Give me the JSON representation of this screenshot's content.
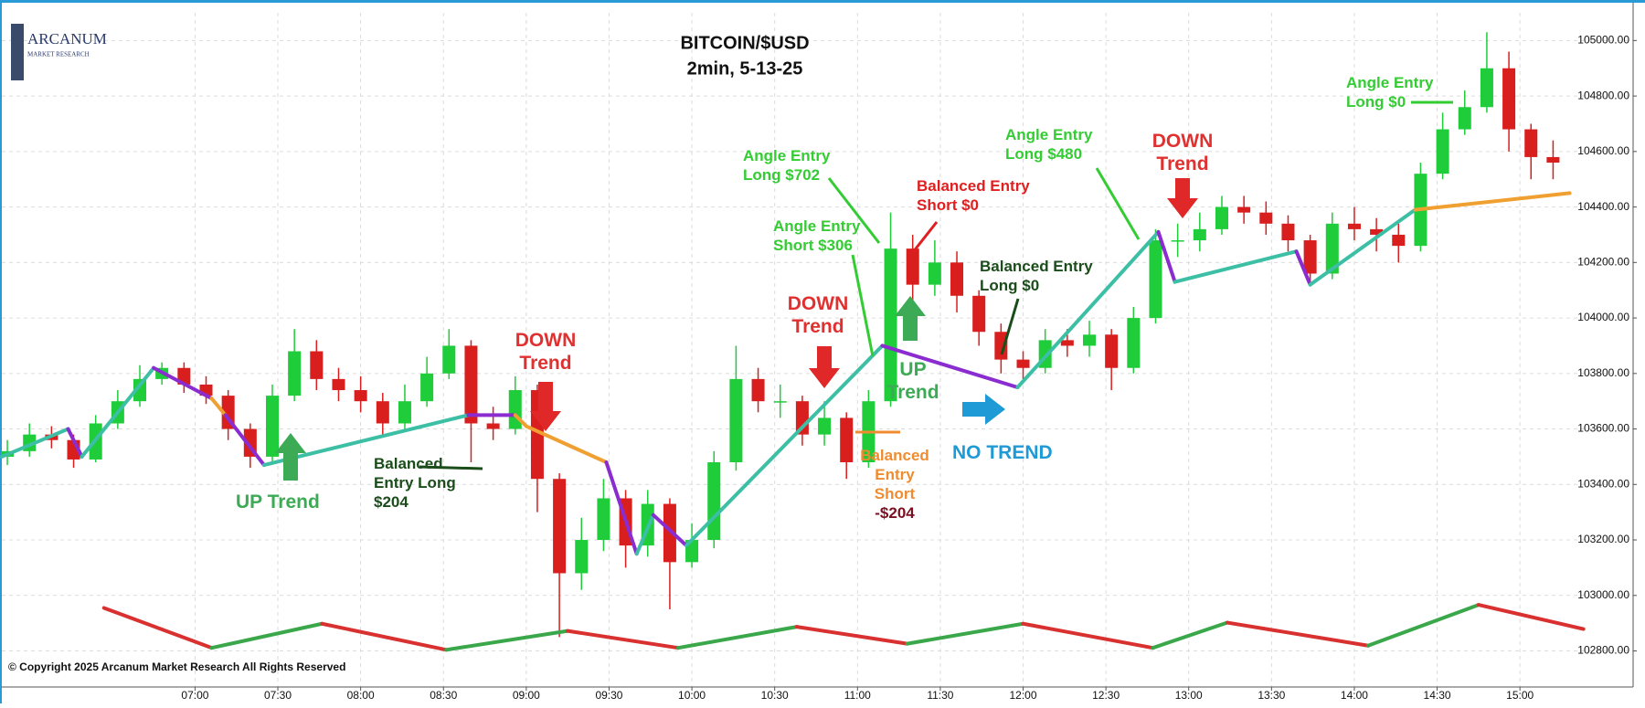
{
  "chart_data": {
    "type": "candlestick",
    "title": "BITCOIN/$USD",
    "subtitle": "2min, 5-13-25",
    "xlim": [
      350,
      941
    ],
    "xticks": [
      {
        "value": 420,
        "label": "07:00"
      },
      {
        "value": 450,
        "label": "07:30"
      },
      {
        "value": 480,
        "label": "08:00"
      },
      {
        "value": 510,
        "label": "08:30"
      },
      {
        "value": 540,
        "label": "09:00"
      },
      {
        "value": 570,
        "label": "09:30"
      },
      {
        "value": 600,
        "label": "10:00"
      },
      {
        "value": 630,
        "label": "10:30"
      },
      {
        "value": 660,
        "label": "11:00"
      },
      {
        "value": 690,
        "label": "11:30"
      },
      {
        "value": 720,
        "label": "12:00"
      },
      {
        "value": 750,
        "label": "12:30"
      },
      {
        "value": 780,
        "label": "13:00"
      },
      {
        "value": 810,
        "label": "13:30"
      },
      {
        "value": 840,
        "label": "14:00"
      },
      {
        "value": 870,
        "label": "14:30"
      },
      {
        "value": 900,
        "label": "15:00"
      }
    ],
    "ylim": [
      102670,
      105100
    ],
    "yticks": [
      {
        "value": 102800,
        "label": "102800.00"
      },
      {
        "value": 103000,
        "label": "103000.00"
      },
      {
        "value": 103200,
        "label": "103200.00"
      },
      {
        "value": 103400,
        "label": "103400.00"
      },
      {
        "value": 103600,
        "label": "103600.00"
      },
      {
        "value": 103800,
        "label": "103800.00"
      },
      {
        "value": 104000,
        "label": "104000.00"
      },
      {
        "value": 104200,
        "label": "104200.00"
      },
      {
        "value": 104400,
        "label": "104400.00"
      },
      {
        "value": 104600,
        "label": "104600.00"
      },
      {
        "value": 104800,
        "label": "104800.00"
      },
      {
        "value": 105000,
        "label": "105000.00"
      }
    ],
    "grid": true,
    "up_color": "#1fcc3a",
    "down_color": "#d91e1e",
    "candles": {
      "x": [
        352,
        360,
        368,
        376,
        384,
        392,
        400,
        408,
        416,
        424,
        432,
        440,
        448,
        456,
        464,
        472,
        480,
        488,
        496,
        504,
        512,
        520,
        528,
        536,
        544,
        552,
        560,
        568,
        576,
        584,
        592,
        600,
        608,
        616,
        624,
        632,
        640,
        648,
        656,
        664,
        672,
        680,
        688,
        696,
        704,
        712,
        720,
        728,
        736,
        744,
        752,
        760,
        768,
        776,
        784,
        792,
        800,
        808,
        816,
        824,
        832,
        840,
        848,
        856,
        864,
        872,
        880,
        888,
        896,
        904,
        912
      ],
      "open": [
        103500,
        103520,
        103580,
        103560,
        103490,
        103620,
        103700,
        103780,
        103820,
        103760,
        103720,
        103600,
        103500,
        103720,
        103880,
        103780,
        103740,
        103700,
        103620,
        103700,
        103800,
        103900,
        103620,
        103600,
        103740,
        103420,
        103080,
        103200,
        103350,
        103180,
        103330,
        103120,
        103200,
        103480,
        103780,
        103700,
        103700,
        103580,
        103640,
        103480,
        103700,
        104250,
        104120,
        104200,
        104080,
        103950,
        103850,
        103820,
        103920,
        103900,
        103940,
        103820,
        104000,
        104280,
        104280,
        104320,
        104400,
        104380,
        104340,
        104280,
        104160,
        104340,
        104320,
        104300,
        104260,
        104520,
        104680,
        104760,
        104900,
        104680,
        104580
      ],
      "high": [
        103560,
        103620,
        103610,
        103580,
        103650,
        103740,
        103830,
        103840,
        103840,
        103790,
        103740,
        103620,
        103760,
        103960,
        103920,
        103820,
        103790,
        103730,
        103760,
        103860,
        103960,
        103920,
        103680,
        103790,
        103760,
        103440,
        103280,
        103420,
        103380,
        103380,
        103350,
        103260,
        103520,
        103900,
        103820,
        103760,
        103720,
        103700,
        103660,
        103740,
        104380,
        104300,
        104280,
        104240,
        104100,
        103980,
        103880,
        103960,
        103960,
        103990,
        103960,
        104040,
        104320,
        104340,
        104380,
        104440,
        104440,
        104420,
        104370,
        104300,
        104380,
        104400,
        104360,
        104340,
        104560,
        104740,
        104820,
        105030,
        104960,
        104700,
        104640
      ],
      "low": [
        103470,
        103500,
        103530,
        103460,
        103480,
        103600,
        103680,
        103760,
        103730,
        103690,
        103560,
        103460,
        103480,
        103700,
        103740,
        103700,
        103660,
        103580,
        103600,
        103680,
        103780,
        103480,
        103560,
        103580,
        103300,
        102850,
        103020,
        103160,
        103100,
        103140,
        102950,
        103100,
        103170,
        103450,
        103660,
        103640,
        103540,
        103540,
        103420,
        103460,
        103680,
        104060,
        104080,
        104020,
        103900,
        103800,
        103780,
        103800,
        103860,
        103860,
        103740,
        103800,
        103980,
        104220,
        104240,
        104300,
        104340,
        104300,
        104240,
        104120,
        104140,
        104280,
        104240,
        104200,
        104240,
        104500,
        104660,
        104740,
        104600,
        104500,
        104500
      ],
      "close": [
        103520,
        103580,
        103560,
        103490,
        103620,
        103700,
        103780,
        103820,
        103760,
        103720,
        103600,
        103500,
        103720,
        103880,
        103780,
        103740,
        103700,
        103620,
        103700,
        103800,
        103900,
        103620,
        103600,
        103740,
        103420,
        103080,
        103200,
        103350,
        103180,
        103330,
        103120,
        103200,
        103480,
        103780,
        103700,
        103700,
        103580,
        103640,
        103480,
        103700,
        104250,
        104120,
        104200,
        104080,
        103950,
        103850,
        103820,
        103920,
        103900,
        103940,
        103820,
        104000,
        104280,
        104280,
        104320,
        104400,
        104380,
        104340,
        104280,
        104160,
        104340,
        104320,
        104300,
        104260,
        104520,
        104680,
        104760,
        104900,
        104680,
        104580,
        104560
      ]
    },
    "trend_line": {
      "x": [
        350,
        374,
        379,
        405,
        426,
        431,
        445,
        519,
        536,
        540,
        569,
        580,
        586,
        598,
        669,
        718,
        769,
        775,
        819,
        824,
        862,
        918
      ],
      "y": [
        103500,
        103600,
        103500,
        103820,
        103710,
        103650,
        103470,
        103650,
        103650,
        103610,
        103480,
        103150,
        103290,
        103180,
        103900,
        103750,
        104310,
        104130,
        104240,
        104120,
        104390,
        104450
      ],
      "segment_colors": [
        "#3cbfa4",
        "#8a2ccf",
        "#3cbfa4",
        "#8a2ccf",
        "#f0a030",
        "#8a2ccf",
        "#3cbfa4",
        "#8a2ccf",
        "#f0a030",
        "#f0a030",
        "#8a2ccf",
        "#3cbfa4",
        "#8a2ccf",
        "#3cbfa4",
        "#8a2ccf",
        "#3cbfa4",
        "#8a2ccf",
        "#3cbfa4",
        "#8a2ccf",
        "#3cbfa4",
        "#f0a030"
      ]
    },
    "indicator_line": {
      "x": [
        387,
        426,
        466,
        511,
        555,
        595,
        638,
        678,
        720,
        767,
        794,
        845,
        885,
        923
      ],
      "y": [
        102955,
        102811,
        102898,
        102804,
        102872,
        102811,
        102887,
        102826,
        102898,
        102811,
        102902,
        102819,
        102966,
        102879
      ],
      "segment_colors": [
        "#d93030",
        "#3aa84a",
        "#d93030",
        "#3aa84a",
        "#d93030",
        "#3aa84a",
        "#d93030",
        "#3aa84a",
        "#d93030",
        "#3aa84a",
        "#d93030",
        "#3aa84a",
        "#d93030"
      ]
    },
    "annotations": [
      {
        "lines": [
          "Angle Entry",
          "Long $0"
        ]
      },
      {
        "lines": [
          "Angle Entry",
          "Long $702"
        ]
      },
      {
        "lines": [
          "Balanced Entry",
          "Short $0"
        ]
      },
      {
        "lines": [
          "Angle Entry",
          "Short $306"
        ]
      },
      {
        "lines": [
          "Angle Entry",
          "Long $480"
        ]
      },
      {
        "lines": [
          "DOWN",
          "Trend"
        ]
      },
      {
        "lines": [
          "Balanced Entry",
          "Long $0"
        ]
      },
      {
        "lines": [
          "DOWN",
          "Trend"
        ]
      },
      {
        "lines": [
          "UP",
          "Trend"
        ]
      },
      {
        "lines": [
          "NO TREND"
        ]
      },
      {
        "lines": [
          "Balanced",
          "Entry",
          "Short",
          "-$204"
        ]
      },
      {
        "lines": [
          "DOWN",
          "Trend"
        ]
      },
      {
        "lines": [
          "Balanced",
          "Entry Long",
          "$204"
        ]
      },
      {
        "lines": [
          "UP Trend"
        ]
      }
    ]
  },
  "logo": {
    "name": "ARCANUM",
    "tagline": "MARKET RESEARCH"
  },
  "copyright": "© Copyright 2025 Arcanum Market Research All Rights Reserved"
}
